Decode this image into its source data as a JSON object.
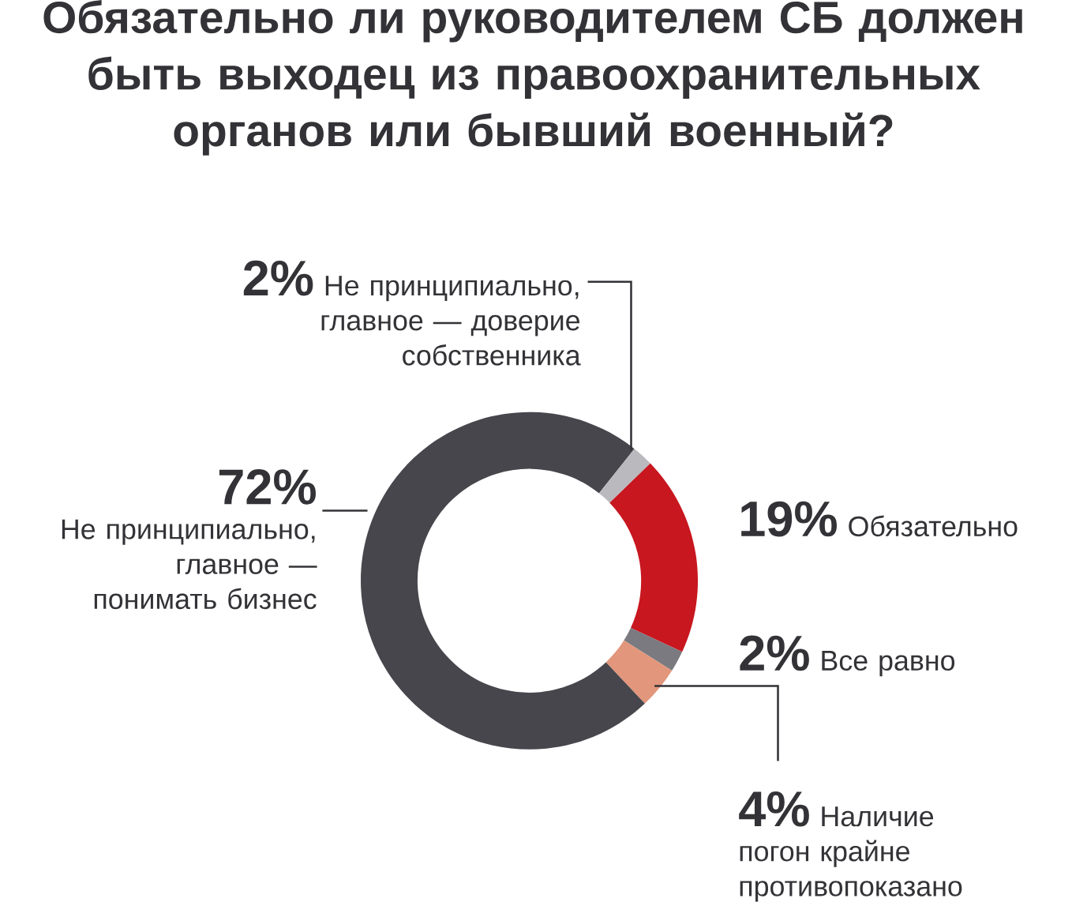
{
  "chart_data": {
    "type": "donut",
    "title": "Обязательно ли руководителем СБ должен быть выходец из правоохранительных органов или бывший военный?",
    "categories": [
      "Обязательно",
      "Все равно",
      "Наличие погон крайне противопоказано",
      "Не принципиально, главное — понимать бизнес",
      "Не принципиально, главное — доверие собственника"
    ],
    "values": [
      19,
      2,
      4,
      72,
      2
    ],
    "value_labels": [
      "19%",
      "2%",
      "4%",
      "72%",
      "2%"
    ],
    "colors": [
      "#c8171f",
      "#7a7a80",
      "#e2967b",
      "#47464c",
      "#b9b9be"
    ]
  }
}
